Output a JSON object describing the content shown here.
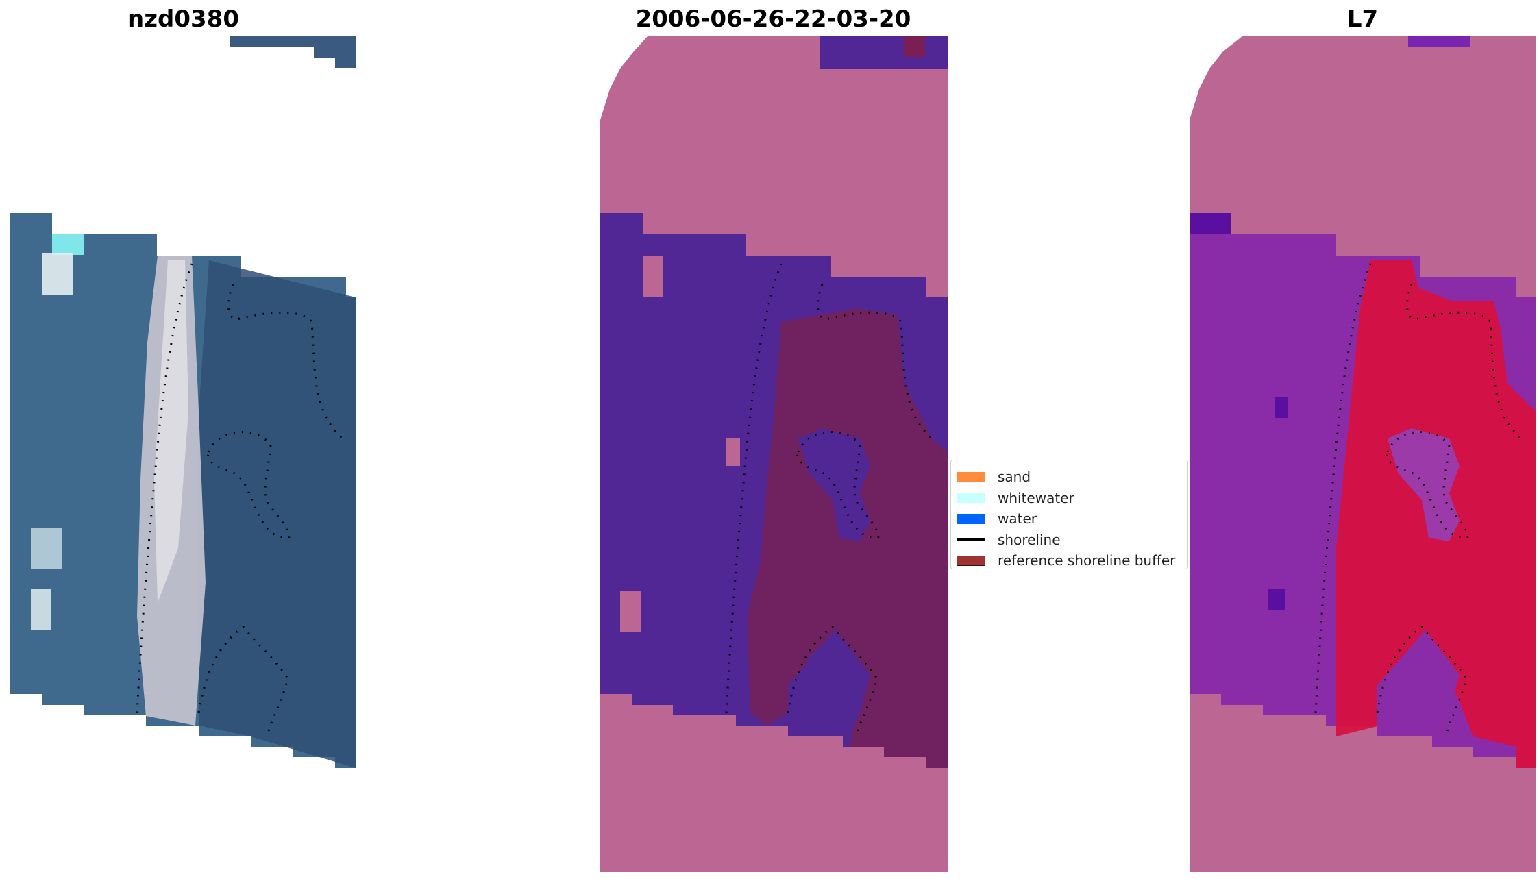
{
  "panels": [
    {
      "title": "nzd0380"
    },
    {
      "title": "2006-06-26-22-03-20"
    },
    {
      "title": "L7"
    }
  ],
  "legend": {
    "items": [
      {
        "label": "sand",
        "color": "#ff8c3c",
        "kind": "patch"
      },
      {
        "label": "whitewater",
        "color": "#c8ffff",
        "kind": "patch"
      },
      {
        "label": "water",
        "color": "#0064ff",
        "kind": "patch"
      },
      {
        "label": "shoreline",
        "color": "#000000",
        "kind": "line"
      },
      {
        "label": "reference shoreline buffer",
        "color": "#a03232",
        "kind": "patch"
      }
    ]
  },
  "colors": {
    "rgb_water_dark": "#2f4f74",
    "rgb_water": "#3f6a8e",
    "rgb_sand": "#c8c6cf",
    "rgb_whitewater": "#7fe6ea",
    "class_nodata": "#bc6694",
    "class_water": "#512796",
    "class_buffer": "#6f2160",
    "index_purple": "#8a2ba8",
    "index_deep": "#5a0fa0",
    "index_red": "#d8103f"
  }
}
